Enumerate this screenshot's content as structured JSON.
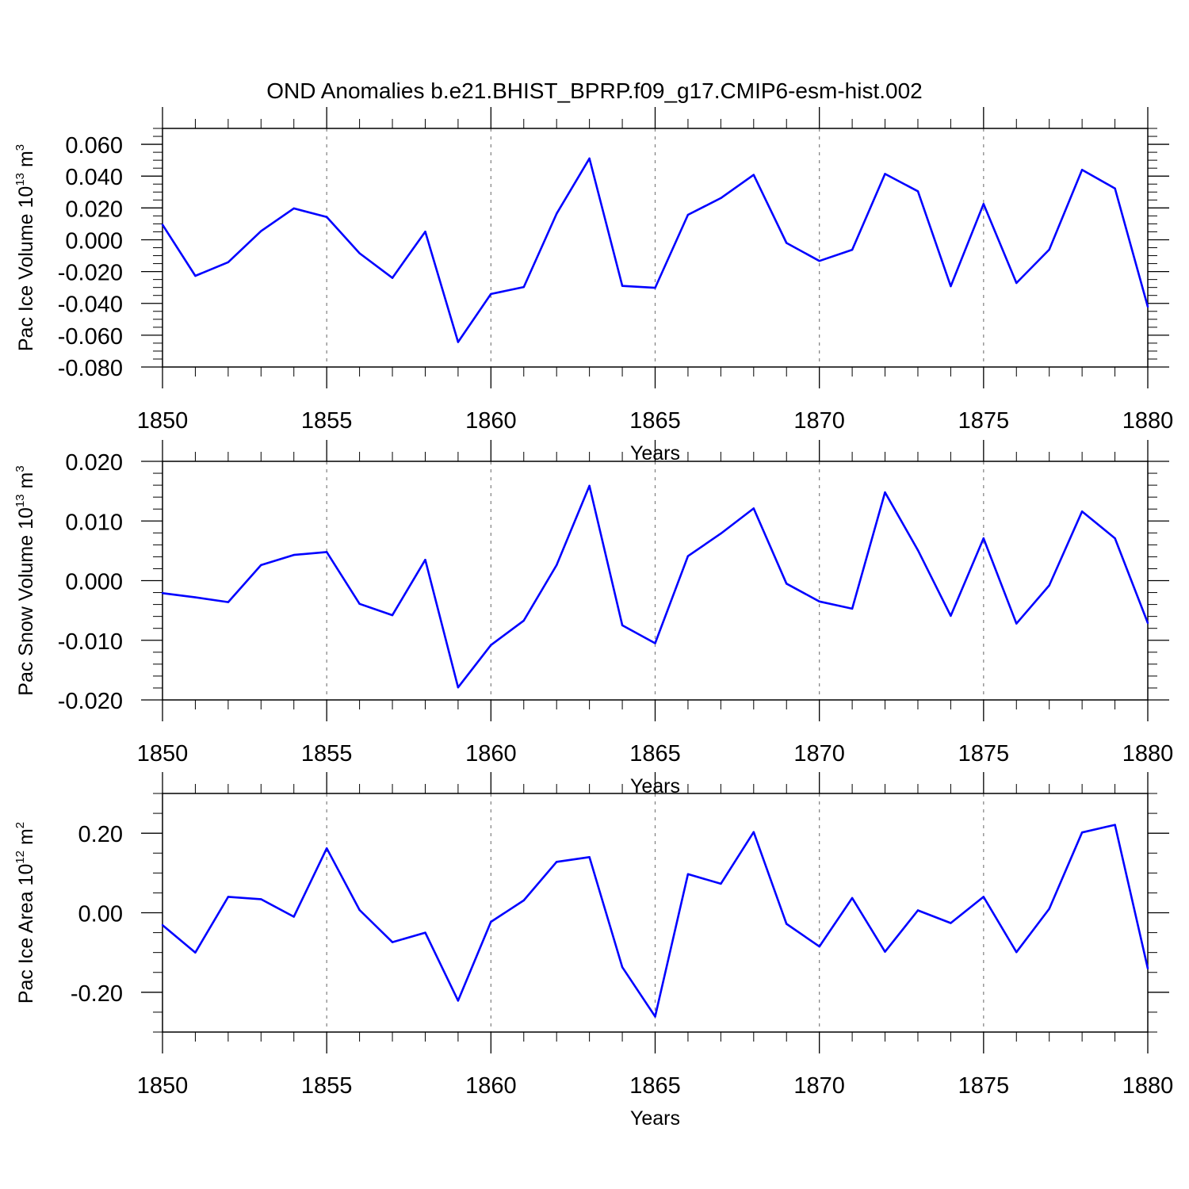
{
  "title": "OND Anomalies b.e21.BHIST_BPRP.f09_g17.CMIP6-esm-hist.002",
  "colors": {
    "line": "#0000ff",
    "frame": "#000000",
    "grid": "#7f7f7f"
  },
  "chart_data": [
    {
      "type": "line",
      "ylabel": {
        "text": "Pac Ice Volume 10",
        "sup": "13",
        "unit": " m",
        "unit_sup": "3"
      },
      "xlabel": "Years",
      "xlim": [
        1850,
        1880
      ],
      "ylim": [
        -0.08,
        0.07
      ],
      "yticks": [
        0.06,
        0.04,
        0.02,
        0.0,
        -0.02,
        -0.04,
        -0.06,
        -0.08
      ],
      "yticklabels": [
        "0.060",
        "0.040",
        "0.020",
        "0.000",
        "-0.020",
        "-0.040",
        "-0.060",
        "-0.080"
      ],
      "yminor_step": 0.005,
      "xticks": [
        1850,
        1855,
        1860,
        1865,
        1870,
        1875,
        1880
      ],
      "xticklabels": [
        "1850",
        "1855",
        "1860",
        "1865",
        "1870",
        "1875",
        "1880"
      ],
      "xgrid": [
        1855,
        1860,
        1865,
        1870,
        1875
      ],
      "x": [
        1850,
        1851,
        1852,
        1853,
        1854,
        1855,
        1856,
        1857,
        1858,
        1859,
        1860,
        1861,
        1862,
        1863,
        1864,
        1865,
        1866,
        1867,
        1868,
        1869,
        1870,
        1871,
        1872,
        1873,
        1874,
        1875,
        1876,
        1877,
        1878,
        1879,
        1880
      ],
      "y": [
        0.0095,
        -0.0227,
        -0.0141,
        0.0054,
        0.0197,
        0.0143,
        -0.0085,
        -0.024,
        0.0051,
        -0.0643,
        -0.0341,
        -0.0297,
        0.0164,
        0.0511,
        -0.029,
        -0.0302,
        0.0157,
        0.0262,
        0.0408,
        -0.002,
        -0.0133,
        -0.0063,
        0.0414,
        0.0305,
        -0.0292,
        0.0225,
        -0.0272,
        -0.0062,
        0.044,
        0.0323,
        -0.0421
      ]
    },
    {
      "type": "line",
      "ylabel": {
        "text": "Pac Snow Volume 10",
        "sup": "13",
        "unit": " m",
        "unit_sup": "3"
      },
      "xlabel": "Years",
      "xlim": [
        1850,
        1880
      ],
      "ylim": [
        -0.02,
        0.02
      ],
      "yticks": [
        0.02,
        0.01,
        0.0,
        -0.01,
        -0.02
      ],
      "yticklabels": [
        "0.020",
        "0.010",
        "0.000",
        "-0.010",
        "-0.020"
      ],
      "yminor_step": 0.002,
      "xticks": [
        1850,
        1855,
        1860,
        1865,
        1870,
        1875,
        1880
      ],
      "xticklabels": [
        "1850",
        "1855",
        "1860",
        "1865",
        "1870",
        "1875",
        "1880"
      ],
      "xgrid": [
        1855,
        1860,
        1865,
        1870,
        1875
      ],
      "x": [
        1850,
        1851,
        1852,
        1853,
        1854,
        1855,
        1856,
        1857,
        1858,
        1859,
        1860,
        1861,
        1862,
        1863,
        1864,
        1865,
        1866,
        1867,
        1868,
        1869,
        1870,
        1871,
        1872,
        1873,
        1874,
        1875,
        1876,
        1877,
        1878,
        1879,
        1880
      ],
      "y": [
        -0.0021,
        -0.0028,
        -0.0036,
        0.0026,
        0.0043,
        0.0048,
        -0.0039,
        -0.0058,
        0.0035,
        -0.0179,
        -0.0108,
        -0.0067,
        0.0026,
        0.0159,
        -0.0075,
        -0.0105,
        0.0041,
        0.0079,
        0.0121,
        -0.0005,
        -0.0035,
        -0.0047,
        0.0148,
        0.0051,
        -0.0059,
        0.0071,
        -0.0072,
        -0.0008,
        0.0116,
        0.0071,
        -0.0071
      ]
    },
    {
      "type": "line",
      "ylabel": {
        "text": "Pac Ice Area 10",
        "sup": "12",
        "unit": " m",
        "unit_sup": "2"
      },
      "xlabel": "Years",
      "xlim": [
        1850,
        1880
      ],
      "ylim": [
        -0.3,
        0.3
      ],
      "yticks": [
        0.2,
        0.0,
        -0.2
      ],
      "yticklabels": [
        "0.20",
        "0.00",
        "-0.20"
      ],
      "yminor_step": 0.05,
      "xticks": [
        1850,
        1855,
        1860,
        1865,
        1870,
        1875,
        1880
      ],
      "xticklabels": [
        "1850",
        "1855",
        "1860",
        "1865",
        "1870",
        "1875",
        "1880"
      ],
      "xgrid": [
        1855,
        1860,
        1865,
        1870,
        1875
      ],
      "x": [
        1850,
        1851,
        1852,
        1853,
        1854,
        1855,
        1856,
        1857,
        1858,
        1859,
        1860,
        1861,
        1862,
        1863,
        1864,
        1865,
        1866,
        1867,
        1868,
        1869,
        1870,
        1871,
        1872,
        1873,
        1874,
        1875,
        1876,
        1877,
        1878,
        1879,
        1880
      ],
      "y": [
        -0.031,
        -0.1,
        0.04,
        0.034,
        -0.01,
        0.162,
        0.007,
        -0.074,
        -0.05,
        -0.221,
        -0.023,
        0.031,
        0.128,
        0.14,
        -0.137,
        -0.261,
        0.097,
        0.073,
        0.203,
        -0.028,
        -0.085,
        0.037,
        -0.098,
        0.006,
        -0.026,
        0.04,
        -0.099,
        0.01,
        0.202,
        0.221,
        -0.14
      ]
    }
  ]
}
